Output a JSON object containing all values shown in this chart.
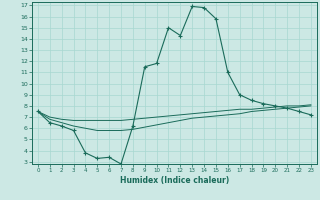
{
  "title": "",
  "xlabel": "Humidex (Indice chaleur)",
  "bg_color": "#cce8e4",
  "line_color": "#1a6b5a",
  "grid_color": "#a8d8d0",
  "xmin": 0,
  "xmax": 23,
  "ymin": 3,
  "ymax": 17,
  "main_x": [
    0,
    1,
    2,
    3,
    4,
    5,
    6,
    7,
    8,
    9,
    10,
    11,
    12,
    13,
    14,
    15,
    16,
    17,
    18,
    19,
    20,
    21,
    22,
    23
  ],
  "main_y": [
    7.5,
    6.5,
    6.2,
    5.8,
    3.8,
    3.3,
    3.4,
    2.8,
    6.2,
    11.5,
    11.8,
    15.0,
    14.3,
    16.9,
    16.8,
    15.8,
    11.0,
    9.0,
    8.5,
    8.2,
    8.0,
    7.8,
    7.5,
    7.2
  ],
  "line2_x": [
    0,
    1,
    2,
    3,
    4,
    5,
    6,
    7,
    8,
    9,
    10,
    11,
    12,
    13,
    14,
    15,
    16,
    17,
    18,
    19,
    20,
    21,
    22,
    23
  ],
  "line2_y": [
    7.5,
    7.0,
    6.8,
    6.7,
    6.7,
    6.7,
    6.7,
    6.7,
    6.8,
    6.9,
    7.0,
    7.1,
    7.2,
    7.3,
    7.4,
    7.5,
    7.6,
    7.7,
    7.7,
    7.8,
    7.9,
    8.0,
    8.0,
    8.1
  ],
  "line3_x": [
    0,
    1,
    2,
    3,
    4,
    5,
    6,
    7,
    8,
    9,
    10,
    11,
    12,
    13,
    14,
    15,
    16,
    17,
    18,
    19,
    20,
    21,
    22,
    23
  ],
  "line3_y": [
    7.5,
    6.8,
    6.5,
    6.2,
    6.0,
    5.8,
    5.8,
    5.8,
    5.9,
    6.1,
    6.3,
    6.5,
    6.7,
    6.9,
    7.0,
    7.1,
    7.2,
    7.3,
    7.5,
    7.6,
    7.7,
    7.8,
    7.9,
    8.0
  ]
}
